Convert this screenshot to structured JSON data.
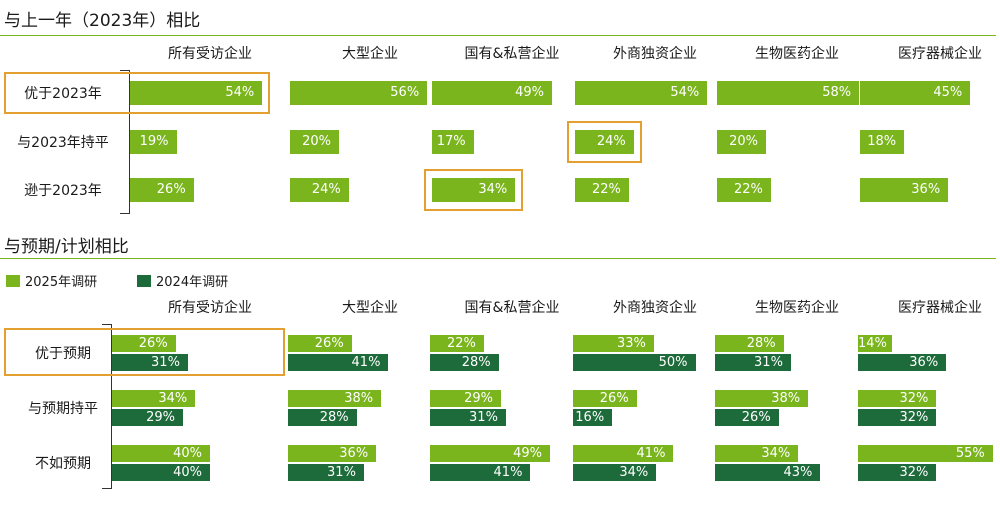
{
  "colors": {
    "series2025": "#7ab51d",
    "series2024": "#1d6b3a",
    "highlight": "#e3a030",
    "rule": "#7ab51d"
  },
  "section1": {
    "title": "与上一年（2023年）相比"
  },
  "section2": {
    "title": "与预期/计划相比"
  },
  "legend": [
    {
      "label": "2025年调研",
      "color": "#7ab51d"
    },
    {
      "label": "2024年调研",
      "color": "#1d6b3a"
    }
  ],
  "chart_data": [
    {
      "type": "bar",
      "title": "与上一年（2023年）相比",
      "categories": [
        "所有受访企业",
        "大型企业",
        "国有&私营企业",
        "外商独资企业",
        "生物医药企业",
        "医疗器械企业"
      ],
      "rows": [
        "优于2023年",
        "与2023年持平",
        "逊于2023年"
      ],
      "series": [
        {
          "values": [
            [
              54,
              19,
              26
            ],
            [
              56,
              20,
              24
            ],
            [
              49,
              17,
              34
            ],
            [
              54,
              24,
              22
            ],
            [
              58,
              20,
              22
            ],
            [
              45,
              18,
              36
            ]
          ]
        }
      ],
      "value_format": "percent",
      "xlim": [
        0,
        100
      ],
      "highlighted": [
        {
          "category": "所有受访企业",
          "row": "优于2023年",
          "scope": "row-label-and-bar"
        },
        {
          "category": "外商独资企业",
          "row": "与2023年持平"
        },
        {
          "category": "国有&私营企业",
          "row": "逊于2023年"
        }
      ]
    },
    {
      "type": "bar",
      "title": "与预期/计划相比",
      "categories": [
        "所有受访企业",
        "大型企业",
        "国有&私营企业",
        "外商独资企业",
        "生物医药企业",
        "医疗器械企业"
      ],
      "rows": [
        "优于预期",
        "与预期持平",
        "不如预期"
      ],
      "series": [
        {
          "name": "2025年调研",
          "values": [
            [
              26,
              34,
              40
            ],
            [
              26,
              38,
              36
            ],
            [
              22,
              29,
              49
            ],
            [
              33,
              26,
              41
            ],
            [
              28,
              38,
              34
            ],
            [
              14,
              32,
              55
            ]
          ]
        },
        {
          "name": "2024年调研",
          "values": [
            [
              31,
              29,
              40
            ],
            [
              41,
              28,
              31
            ],
            [
              28,
              31,
              41
            ],
            [
              50,
              16,
              34
            ],
            [
              31,
              26,
              43
            ],
            [
              36,
              32,
              32
            ]
          ]
        }
      ],
      "value_format": "percent",
      "xlim": [
        0,
        100
      ],
      "highlighted": [
        {
          "row": "优于预期",
          "scope": "row-label-and-first-category"
        }
      ]
    }
  ]
}
